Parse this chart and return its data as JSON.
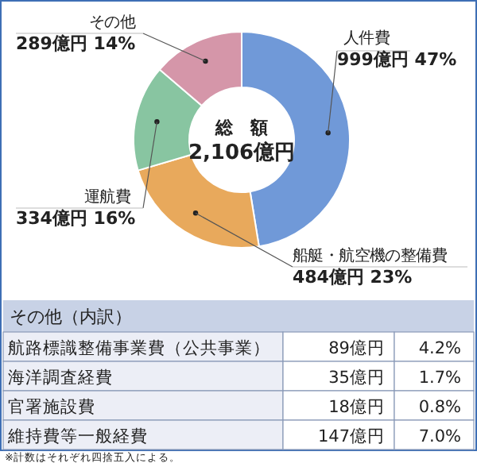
{
  "chart_data": [
    {
      "type": "donut",
      "categories": [
        "人件費",
        "船艇・航空機の整備費",
        "運航費",
        "その他"
      ],
      "values": [
        999,
        484,
        334,
        289
      ],
      "colors": [
        "#7099d8",
        "#e8a95c",
        "#88c5a1",
        "#d596a9"
      ],
      "value_labels": [
        "999億円 47%",
        "484億円 23%",
        "334億円 16%",
        "289億円 14%"
      ],
      "annotations": [
        "総　額",
        "2,106億円"
      ]
    },
    {
      "type": "other",
      "title": "その他（内訳）",
      "categories": [
        "航路標識整備事業費（公共事業）",
        "海洋調査経費",
        "官署施設費",
        "維持費等一般経費"
      ],
      "series": [
        {
          "values": [
            89,
            35,
            18,
            147
          ],
          "value_labels": [
            "89億円",
            "35億円",
            "18億円",
            "147億円"
          ]
        },
        {
          "values": [
            4.2,
            1.7,
            0.8,
            7.0
          ],
          "value_labels": [
            "4.2%",
            "1.7%",
            "0.8%",
            "7.0%"
          ]
        }
      ],
      "annotations": [
        "※計数はそれぞれ四捨五入による。"
      ]
    }
  ]
}
